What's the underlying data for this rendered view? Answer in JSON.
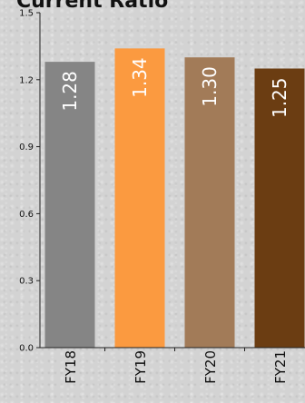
{
  "chart_data": {
    "type": "bar",
    "title": "Current Ratio",
    "categories": [
      "FY18",
      "FY19",
      "FY20",
      "FY21"
    ],
    "values": [
      1.28,
      1.34,
      1.3,
      1.25
    ],
    "value_labels": [
      "1.28",
      "1.34",
      "1.30",
      "1.25"
    ],
    "colors": [
      "#858585",
      "#fb9a40",
      "#a27b58",
      "#6b3d12"
    ],
    "ylim": [
      0.0,
      1.5
    ],
    "yticks": [
      0.0,
      0.3,
      0.6,
      0.9,
      1.2,
      1.5
    ],
    "ytick_labels": [
      "0.0",
      "0.3",
      "0.6",
      "0.9",
      "1.2",
      "1.5"
    ],
    "xlabel": "",
    "ylabel": "",
    "grid": false,
    "legend": false
  }
}
